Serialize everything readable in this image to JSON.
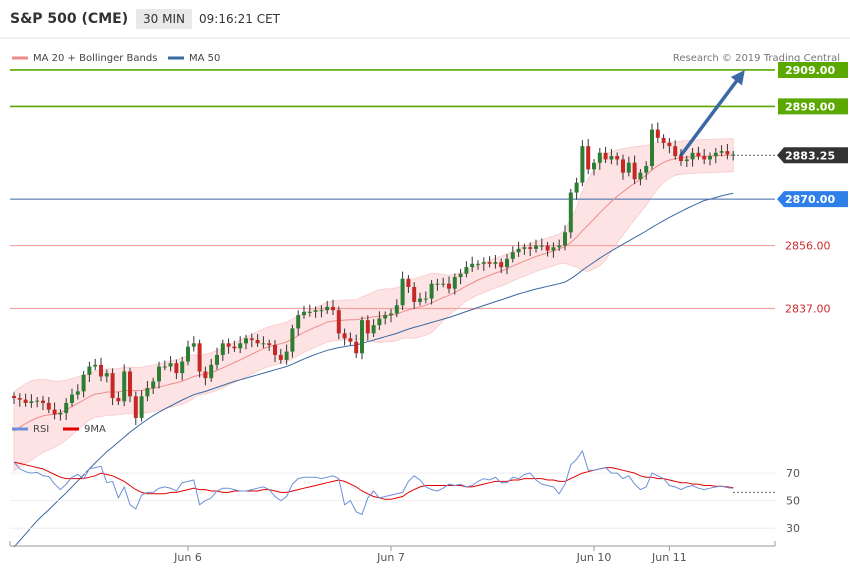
{
  "header": {
    "instrument": "S&P 500 (CME)",
    "timeframe": "30 MIN",
    "time": "09:16:21 CET"
  },
  "legend": {
    "ma20_bollinger": "MA 20 + Bollinger Bands",
    "ma50": "MA 50",
    "credit": "Research © 2019 Trading Central"
  },
  "rsi_legend": {
    "rsi": "RSI",
    "ma9": "9MA"
  },
  "colors": {
    "green_level": "#5aa800",
    "red_level": "#f4a3a3",
    "ma50": "#3a69a4",
    "ma20": "#f28b8b",
    "band_fill": "#fde3e3",
    "candle_up": "#2e7d32",
    "candle_down": "#c62828",
    "current_badge": "#333333",
    "ma50_badge": "#2f7fe8",
    "rsi": "#6d8fd8",
    "rsi_ma": "#e00000",
    "arrow": "#3a69a4"
  },
  "chart_data": {
    "type": "candlestick",
    "ylim": [
      2810,
      2912
    ],
    "x_labels": [
      {
        "label": "Jun 6",
        "index": 30
      },
      {
        "label": "Jun 7",
        "index": 65
      },
      {
        "label": "Jun 10",
        "index": 100
      },
      {
        "label": "Jun 11",
        "index": 113
      }
    ],
    "resistance_levels": [
      {
        "value": 2909,
        "label": "2909.00"
      },
      {
        "value": 2898,
        "label": "2898.00"
      }
    ],
    "support_levels": [
      {
        "value": 2856,
        "label": "2856.00"
      },
      {
        "value": 2837,
        "label": "2837.00"
      }
    ],
    "current_price": {
      "value": 2883.25,
      "label": "2883.25"
    },
    "ma50_price": {
      "value": 2870,
      "label": "2870.00"
    },
    "projection": {
      "from_index": 115,
      "from_value": 2883.25,
      "to_index": 126,
      "to_value": 2909
    },
    "close": [
      2810,
      2809.5,
      2808.5,
      2809,
      2809.2,
      2808.5,
      2806.5,
      2805,
      2805.5,
      2808.5,
      2811,
      2812,
      2817,
      2819.5,
      2820,
      2816.5,
      2817.5,
      2810,
      2809,
      2818,
      2810.5,
      2804,
      2810.5,
      2813,
      2815,
      2819.5,
      2819.5,
      2820.5,
      2817.5,
      2821,
      2825.5,
      2826.5,
      2818,
      2816,
      2820,
      2823,
      2826.5,
      2825.5,
      2825,
      2826.5,
      2828,
      2827.5,
      2826.5,
      2826.5,
      2826,
      2823,
      2821.5,
      2824,
      2831,
      2835,
      2836,
      2836,
      2836.5,
      2836.5,
      2837.5,
      2836.5,
      2829.5,
      2828,
      2827,
      2823.5,
      2833.5,
      2829.5,
      2832,
      2834,
      2835,
      2835.5,
      2838,
      2846,
      2843.5,
      2839,
      2840,
      2840,
      2844.5,
      2844.5,
      2844.5,
      2843,
      2846.5,
      2847.5,
      2849.5,
      2850.5,
      2850.5,
      2851,
      2850.5,
      2851,
      2849.5,
      2852,
      2854,
      2855,
      2855.5,
      2855,
      2856,
      2856,
      2854.5,
      2855.5,
      2856,
      2860,
      2872,
      2875,
      2886,
      2879,
      2881,
      2884,
      2882,
      2883,
      2882,
      2878,
      2881,
      2876,
      2878,
      2880,
      2891,
      2888.5,
      2887,
      2886,
      2883,
      2881.5,
      2882,
      2884,
      2883,
      2882,
      2883,
      2884,
      2884.5,
      2883.5,
      2883.5
    ],
    "ma20": [
      2800,
      2801.2,
      2802.3,
      2803.2,
      2804,
      2804.6,
      2804.9,
      2805.1,
      2805.6,
      2806.4,
      2807.4,
      2808.4,
      2809.4,
      2810.4,
      2811.2,
      2811.4,
      2811.8,
      2811.8,
      2811.9,
      2812.2,
      2812.3,
      2812.2,
      2812.3,
      2812.6,
      2812.9,
      2813.3,
      2813.7,
      2814.2,
      2814.6,
      2815.1,
      2815.8,
      2816.5,
      2816.9,
      2817.2,
      2817.7,
      2818.3,
      2819.1,
      2819.9,
      2820.7,
      2821.5,
      2822.4,
      2823.2,
      2824.1,
      2824.9,
      2825.5,
      2826,
      2826.4,
      2826.9,
      2827.8,
      2828.8,
      2829.8,
      2830.6,
      2831.4,
      2832.1,
      2832.9,
      2833.2,
      2833.4,
      2833.5,
      2833.6,
      2833.6,
      2834,
      2834.2,
      2834.5,
      2834.7,
      2834.9,
      2835,
      2835.3,
      2836,
      2836.6,
      2837,
      2837.5,
      2838,
      2838.7,
      2839.5,
      2840.3,
      2841,
      2841.9,
      2842.8,
      2843.8,
      2844.7,
      2845.6,
      2846.3,
      2847,
      2847.7,
      2848.3,
      2849,
      2849.8,
      2850.6,
      2851.3,
      2852,
      2852.7,
      2853.3,
      2853.8,
      2854.4,
      2855,
      2855.7,
      2857,
      2858.5,
      2860.5,
      2862.2,
      2864,
      2865.9,
      2867.6,
      2869.3,
      2870.9,
      2872.2,
      2873.6,
      2874.8,
      2876,
      2877.2,
      2878.8,
      2880.1,
      2881.1,
      2881.8,
      2882.2,
      2882.5,
      2882.7,
      2882.8,
      2882.9,
      2883,
      2883,
      2883.1,
      2883.2,
      2883.2,
      2883.3
    ],
    "ma50": [
      2765,
      2767,
      2769,
      2771,
      2773,
      2774.7,
      2776.3,
      2778,
      2779.7,
      2781.4,
      2783.2,
      2785,
      2786.8,
      2788.6,
      2790.4,
      2792.1,
      2793.8,
      2795.2,
      2796.7,
      2798.2,
      2799.7,
      2801,
      2802.3,
      2803.5,
      2804.7,
      2805.7,
      2806.7,
      2807.6,
      2808.5,
      2809.4,
      2810.2,
      2811,
      2811.5,
      2812,
      2812.6,
      2813.2,
      2813.8,
      2814.4,
      2815,
      2815.5,
      2816,
      2816.5,
      2817,
      2817.5,
      2818,
      2818.5,
      2819,
      2819.5,
      2820.2,
      2821,
      2821.8,
      2822.5,
      2823.2,
      2823.8,
      2824.4,
      2824.8,
      2825.2,
      2825.5,
      2825.8,
      2826,
      2826.5,
      2827,
      2827.5,
      2828,
      2828.5,
      2829,
      2829.5,
      2830.2,
      2830.8,
      2831.3,
      2831.8,
      2832.3,
      2832.8,
      2833.3,
      2833.8,
      2834.3,
      2834.9,
      2835.5,
      2836.1,
      2836.7,
      2837.3,
      2837.9,
      2838.5,
      2839.1,
      2839.6,
      2840.2,
      2840.8,
      2841.4,
      2841.9,
      2842.4,
      2842.9,
      2843.3,
      2843.7,
      2844.1,
      2844.5,
      2845,
      2846,
      2847.2,
      2848.6,
      2849.8,
      2851,
      2852.2,
      2853.3,
      2854.4,
      2855.4,
      2856.4,
      2857.4,
      2858.4,
      2859.4,
      2860.4,
      2861.5,
      2862.5,
      2863.5,
      2864.5,
      2865.4,
      2866.3,
      2867.2,
      2868,
      2868.8,
      2869.6,
      2870,
      2870.5,
      2871,
      2871.4,
      2871.8
    ],
    "bb_width": [
      12,
      12,
      12,
      12,
      11.5,
      11,
      10.5,
      10,
      9.5,
      9,
      8.5,
      8,
      7.5,
      7,
      7,
      7,
      7,
      7,
      7,
      7,
      7,
      7,
      7,
      7,
      7,
      7,
      7,
      7,
      7,
      7,
      7,
      6.5,
      6,
      6,
      6,
      6,
      6,
      6,
      6,
      6,
      6,
      6,
      6,
      6,
      6,
      6,
      6,
      6,
      6,
      6,
      6,
      6,
      6,
      6,
      6,
      6,
      6,
      6,
      6,
      6,
      6.5,
      7,
      7.5,
      8,
      8,
      8,
      8,
      8,
      8.5,
      9,
      9,
      9,
      9,
      8,
      7,
      6,
      5.5,
      5,
      4.5,
      4.5,
      4.5,
      4.5,
      4.5,
      4.5,
      4.5,
      4.5,
      4.5,
      4.5,
      4.5,
      4.5,
      4.5,
      4.5,
      4.5,
      4.5,
      4.5,
      5,
      7,
      9,
      12,
      14,
      15,
      16,
      16,
      15,
      14,
      13,
      12,
      11,
      10,
      9,
      8,
      7,
      6,
      5.5,
      5,
      5,
      5,
      5,
      5,
      5,
      5,
      5,
      5,
      5,
      5
    ],
    "rsi": {
      "levels": [
        70,
        50,
        30
      ],
      "ylim": [
        20,
        94
      ],
      "reference_value": 56,
      "values": [
        78,
        73,
        71,
        70,
        70.5,
        68,
        67.5,
        62,
        58,
        62,
        67,
        69,
        66,
        73,
        74,
        75,
        63,
        64,
        52,
        60,
        47,
        44,
        54,
        56,
        56,
        59,
        60,
        59,
        57,
        63,
        64,
        65,
        47,
        50,
        52,
        57,
        59,
        59,
        58,
        57,
        57,
        58,
        59,
        60,
        58,
        53,
        50,
        53,
        62,
        66,
        67,
        67,
        67,
        66,
        67,
        68,
        66,
        47,
        50,
        42,
        40,
        52,
        57,
        52,
        53,
        54,
        55,
        56,
        64,
        68,
        65,
        60,
        58,
        57,
        59,
        62,
        61,
        62,
        60,
        61,
        64,
        66,
        65,
        67,
        63,
        63,
        67,
        66,
        69,
        70,
        65,
        62,
        61,
        60,
        55,
        62,
        76,
        80,
        86,
        72,
        72,
        73,
        74,
        70,
        70,
        66,
        68,
        62,
        58,
        60,
        70,
        68,
        66,
        61,
        60,
        58,
        60,
        61,
        59,
        58,
        59,
        60,
        60.5,
        59.5,
        59
      ],
      "ma9": [
        78,
        77,
        76,
        75,
        74,
        73,
        71,
        69,
        67,
        66,
        66,
        66,
        66,
        67,
        68,
        70,
        69,
        68,
        66,
        64,
        61,
        58,
        56,
        55,
        55,
        55,
        55,
        56,
        56,
        57,
        58,
        59,
        58,
        58,
        57,
        57,
        56,
        56,
        57,
        57,
        57,
        57,
        57,
        58,
        58,
        57,
        56,
        56,
        57,
        58,
        59,
        60,
        61,
        62,
        63,
        64,
        65,
        64,
        62,
        60,
        57,
        55,
        53,
        52,
        51,
        51,
        52,
        53,
        56,
        58,
        60,
        61,
        61,
        61,
        61,
        61,
        61,
        61,
        60,
        60,
        61,
        62,
        63,
        64,
        64,
        64,
        65,
        65,
        66,
        66,
        66,
        66,
        65,
        65,
        64,
        64,
        66,
        68,
        70,
        71,
        72,
        73,
        74,
        74,
        73,
        72,
        71,
        70,
        68,
        67,
        67,
        66,
        66,
        65,
        64,
        63,
        63,
        62,
        62,
        61,
        61,
        60.5,
        60.5,
        60,
        59.5
      ]
    }
  }
}
